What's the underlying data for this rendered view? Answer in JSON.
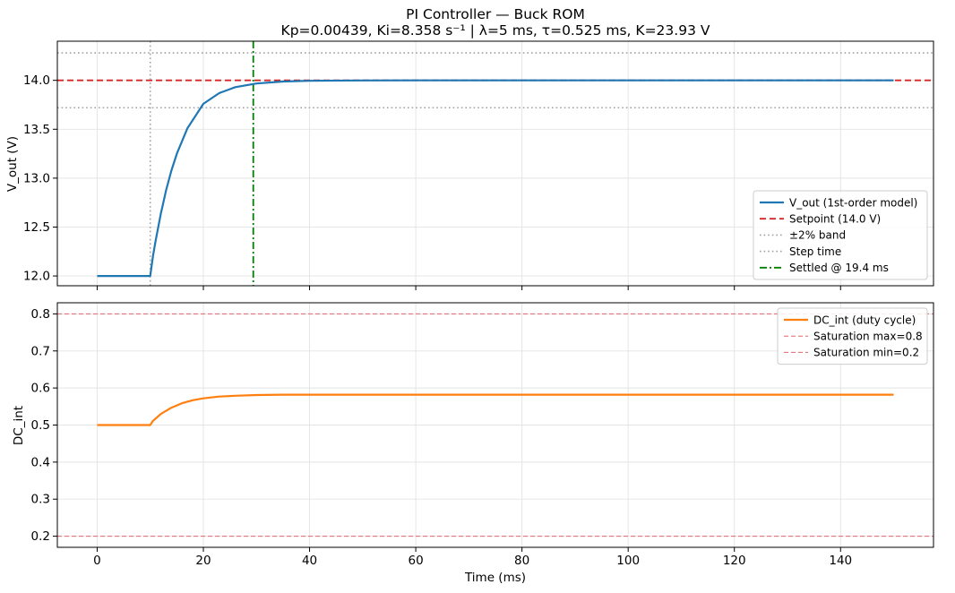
{
  "chart_data": {
    "type": "line",
    "title": "PI Controller — Buck ROM",
    "subtitle": "Kp=0.00439,  Ki=8.358 s⁻¹  |  λ=5 ms,  τ=0.525 ms,  K=23.93 V",
    "xlabel": "Time  (ms)",
    "xlim": [
      -7.5,
      157.5
    ],
    "x_ticks": [
      0,
      20,
      40,
      60,
      80,
      100,
      120,
      140
    ],
    "grid": true,
    "colors": {
      "vout": "#1f77b4",
      "setpoint": "#d62728",
      "band": "#a0a0a0",
      "settled": "#008000",
      "dc": "#ff7f0e",
      "saturation": "#e8626a"
    },
    "panels": [
      {
        "ylabel": "V_out  (V)",
        "ylim": [
          11.9,
          14.4
        ],
        "y_ticks": [
          12.0,
          12.5,
          13.0,
          13.5,
          14.0
        ],
        "legend_position": "lower-right",
        "series": [
          {
            "name": "V_out  (1st-order model)",
            "style": "solid",
            "x": [
              0,
              10,
              10.5,
              11,
              12,
              13,
              14,
              15,
              17,
              20,
              23,
              26,
              30,
              35,
              40,
              50,
              60,
              80,
              100,
              120,
              150
            ],
            "y": [
              12.0,
              12.0,
              12.2,
              12.36,
              12.64,
              12.88,
              13.08,
              13.25,
              13.51,
              13.76,
              13.87,
              13.93,
              13.968,
              13.988,
              13.995,
              13.999,
              14.0,
              14.0,
              14.0,
              14.0,
              14.0
            ]
          },
          {
            "name": "Setpoint  (14.0 V)",
            "style": "dashed",
            "hline": 14.0
          },
          {
            "name": "±2% band",
            "style": "dotted",
            "hlines": [
              13.72,
              14.28
            ]
          },
          {
            "name": "Step time",
            "style": "dotted",
            "vline": 10
          },
          {
            "name": "Settled @ 19.4 ms",
            "style": "dashdot",
            "vline": 29.4
          }
        ]
      },
      {
        "ylabel": "DC_int",
        "ylim": [
          0.17,
          0.83
        ],
        "y_ticks": [
          0.2,
          0.3,
          0.4,
          0.5,
          0.6,
          0.7,
          0.8
        ],
        "legend_position": "upper-right",
        "series": [
          {
            "name": "DC_int  (duty cycle)",
            "style": "solid",
            "x": [
              0,
              10,
              10.5,
              12,
              14,
              16,
              18,
              20,
              23,
              26,
              30,
              35,
              40,
              60,
              100,
              150
            ],
            "y": [
              0.5,
              0.5,
              0.511,
              0.53,
              0.547,
              0.559,
              0.567,
              0.572,
              0.577,
              0.579,
              0.581,
              0.582,
              0.582,
              0.582,
              0.582,
              0.582
            ]
          },
          {
            "name": "Saturation max=0.8",
            "style": "dashed-thin",
            "hline": 0.8
          },
          {
            "name": "Saturation min=0.2",
            "style": "dashed-thin",
            "hline": 0.2
          }
        ]
      }
    ]
  }
}
